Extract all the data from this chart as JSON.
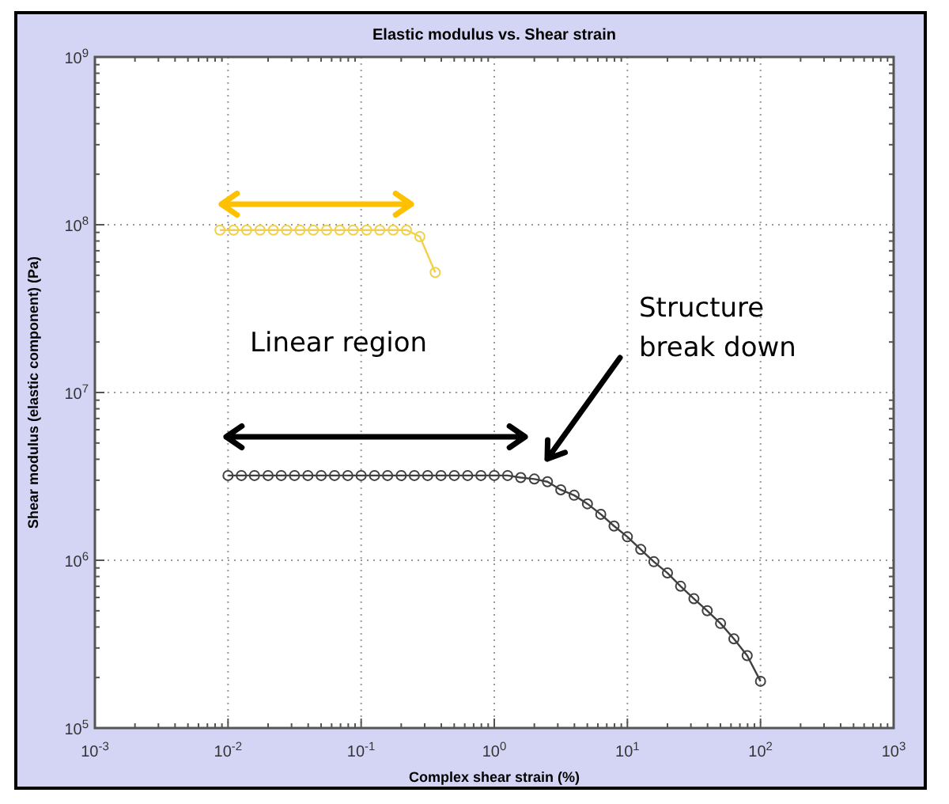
{
  "chart_data": {
    "type": "line",
    "title": "Elastic modulus  vs. Shear strain",
    "xlabel": "Complex shear strain (%)",
    "ylabel": "Shear modulus (elastic component) (Pa)",
    "log": "xy",
    "xlim": [
      0.001,
      1000
    ],
    "ylim": [
      100000,
      1000000000
    ],
    "xticks": [
      {
        "value": 0.001,
        "label": "10$^{-3}$"
      },
      {
        "value": 0.01,
        "label": "10$^{-2}$"
      },
      {
        "value": 0.1,
        "label": "10$^{-1}$"
      },
      {
        "value": 1,
        "label": "10$^{0}$"
      },
      {
        "value": 10,
        "label": "10$^{1}$"
      },
      {
        "value": 100,
        "label": "10$^{2}$"
      },
      {
        "value": 1000,
        "label": "10$^{3}$"
      }
    ],
    "yticks": [
      {
        "value": 100000,
        "label": "10$^{5}$"
      },
      {
        "value": 1000000,
        "label": "10$^{6}$"
      },
      {
        "value": 10000000,
        "label": "10$^{7}$"
      },
      {
        "value": 100000000,
        "label": "10$^{8}$"
      },
      {
        "value": 1000000000,
        "label": "10$^{9}$"
      }
    ],
    "grid": true,
    "marker": "circle",
    "line_style": "solid",
    "series": [
      {
        "color": "#f2d04a",
        "x": [
          0.0087,
          0.011,
          0.0138,
          0.0174,
          0.0219,
          0.0275,
          0.0347,
          0.0437,
          0.055,
          0.0692,
          0.0871,
          0.11,
          0.138,
          0.174,
          0.219,
          0.276,
          0.36
        ],
        "values": [
          93000000,
          93000000,
          93000000,
          93000000,
          93000000,
          93000000,
          93000000,
          93000000,
          93000000,
          93000000,
          93000000,
          93000000,
          93000000,
          93000000,
          93000000,
          85000000,
          52000000
        ]
      },
      {
        "color": "#404040",
        "x": [
          0.01,
          0.0126,
          0.0158,
          0.02,
          0.0251,
          0.0316,
          0.0398,
          0.0501,
          0.0631,
          0.0794,
          0.1,
          0.126,
          0.158,
          0.2,
          0.251,
          0.316,
          0.398,
          0.501,
          0.631,
          0.794,
          1,
          1.26,
          1.58,
          2,
          2.51,
          3.16,
          3.98,
          5.01,
          6.31,
          7.94,
          10,
          12.6,
          15.8,
          20,
          25.1,
          31.6,
          39.8,
          50.1,
          63.1,
          79.4,
          100
        ],
        "values": [
          3200000,
          3200000,
          3200000,
          3200000,
          3200000,
          3200000,
          3200000,
          3200000,
          3200000,
          3200000,
          3200000,
          3200000,
          3200000,
          3200000,
          3200000,
          3200000,
          3200000,
          3200000,
          3200000,
          3200000,
          3200000,
          3200000,
          3110000,
          3050000,
          2940000,
          2630000,
          2440000,
          2170000,
          1880000,
          1600000,
          1380000,
          1160000,
          980000,
          840000,
          700000,
          590000,
          500000,
          420000,
          340000,
          270000,
          190000
        ]
      }
    ],
    "annotations": [
      "Linear region",
      "Structure\nbreak down"
    ]
  }
}
